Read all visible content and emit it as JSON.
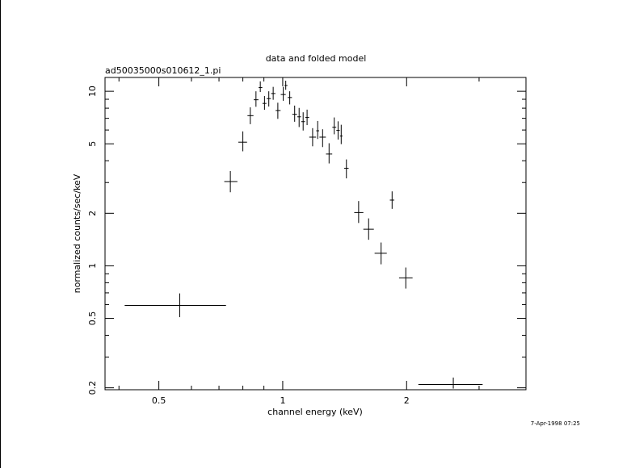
{
  "chart_data": {
    "type": "scatter",
    "title": "data and folded model",
    "subtitle": "ad50035000s010612_1.pi",
    "xlabel": "channel energy (keV)",
    "ylabel": "normalized counts/sec/keV",
    "x_scale": "log",
    "y_scale": "log",
    "xlim": [
      0.37,
      3.9
    ],
    "ylim": [
      0.195,
      12.0
    ],
    "x_ticks": [
      {
        "value": 0.5,
        "label": "0.5"
      },
      {
        "value": 1,
        "label": "1"
      },
      {
        "value": 2,
        "label": "2"
      }
    ],
    "y_ticks": [
      {
        "value": 0.2,
        "label": "0.2"
      },
      {
        "value": 0.5,
        "label": "0.5"
      },
      {
        "value": 1,
        "label": "1"
      },
      {
        "value": 2,
        "label": "2"
      },
      {
        "value": 5,
        "label": "5"
      },
      {
        "value": 10,
        "label": "10"
      }
    ],
    "series": [
      {
        "points": [
          {
            "x": 0.562,
            "xlo": 0.413,
            "xhi": 0.728,
            "y": 0.593,
            "ylo": 0.508,
            "yhi": 0.695
          },
          {
            "x": 0.746,
            "xlo": 0.721,
            "xhi": 0.776,
            "y": 3.04,
            "ylo": 2.64,
            "yhi": 3.49
          },
          {
            "x": 0.8,
            "xlo": 0.78,
            "xhi": 0.819,
            "y": 5.11,
            "ylo": 4.53,
            "yhi": 5.89
          },
          {
            "x": 0.834,
            "xlo": 0.821,
            "xhi": 0.849,
            "y": 7.25,
            "ylo": 6.48,
            "yhi": 8.09
          },
          {
            "x": 0.861,
            "xlo": 0.85,
            "xhi": 0.873,
            "y": 8.94,
            "ylo": 8.15,
            "yhi": 10.0
          },
          {
            "x": 0.882,
            "xlo": 0.874,
            "xhi": 0.892,
            "y": 10.5,
            "ylo": 9.9,
            "yhi": 11.4
          },
          {
            "x": 0.903,
            "xlo": 0.893,
            "xhi": 0.913,
            "y": 8.52,
            "ylo": 7.83,
            "yhi": 9.39
          },
          {
            "x": 0.925,
            "xlo": 0.914,
            "xhi": 0.936,
            "y": 9.08,
            "ylo": 8.18,
            "yhi": 10.0
          },
          {
            "x": 0.948,
            "xlo": 0.937,
            "xhi": 0.96,
            "y": 9.71,
            "ylo": 8.94,
            "yhi": 10.6
          },
          {
            "x": 0.973,
            "xlo": 0.961,
            "xhi": 0.988,
            "y": 7.76,
            "ylo": 6.95,
            "yhi": 8.6
          },
          {
            "x": 1.003,
            "xlo": 0.989,
            "xhi": 1.017,
            "y": 9.58,
            "ylo": 8.82,
            "yhi": 10.6
          },
          {
            "x": 1.017,
            "xlo": 1.01,
            "xhi": 1.027,
            "y": 10.8,
            "ylo": 10.2,
            "yhi": 11.5
          },
          {
            "x": 1.04,
            "xlo": 1.028,
            "xhi": 1.053,
            "y": 9.21,
            "ylo": 8.41,
            "yhi": 10.0
          },
          {
            "x": 1.069,
            "xlo": 1.055,
            "xhi": 1.083,
            "y": 7.38,
            "ylo": 6.69,
            "yhi": 8.28
          },
          {
            "x": 1.096,
            "xlo": 1.085,
            "xhi": 1.108,
            "y": 7.14,
            "ylo": 6.24,
            "yhi": 8.03
          },
          {
            "x": 1.121,
            "xlo": 1.109,
            "xhi": 1.133,
            "y": 6.7,
            "ylo": 5.96,
            "yhi": 7.58
          },
          {
            "x": 1.146,
            "xlo": 1.135,
            "xhi": 1.159,
            "y": 7.08,
            "ylo": 6.4,
            "yhi": 7.85
          },
          {
            "x": 1.182,
            "xlo": 1.16,
            "xhi": 1.205,
            "y": 5.46,
            "ylo": 4.84,
            "yhi": 6.15
          },
          {
            "x": 1.216,
            "xlo": 1.206,
            "xhi": 1.226,
            "y": 5.94,
            "ylo": 5.33,
            "yhi": 6.76
          },
          {
            "x": 1.25,
            "xlo": 1.228,
            "xhi": 1.273,
            "y": 5.46,
            "ylo": 4.79,
            "yhi": 6.06
          },
          {
            "x": 1.296,
            "xlo": 1.274,
            "xhi": 1.319,
            "y": 4.37,
            "ylo": 3.86,
            "yhi": 5.04
          },
          {
            "x": 1.334,
            "xlo": 1.32,
            "xhi": 1.349,
            "y": 6.22,
            "ylo": 5.67,
            "yhi": 7.08
          },
          {
            "x": 1.363,
            "xlo": 1.35,
            "xhi": 1.376,
            "y": 5.97,
            "ylo": 5.29,
            "yhi": 6.73
          },
          {
            "x": 1.387,
            "xlo": 1.377,
            "xhi": 1.398,
            "y": 5.54,
            "ylo": 4.98,
            "yhi": 6.43
          },
          {
            "x": 1.428,
            "xlo": 1.41,
            "xhi": 1.446,
            "y": 3.62,
            "ylo": 3.17,
            "yhi": 4.07
          },
          {
            "x": 1.529,
            "xlo": 1.492,
            "xhi": 1.57,
            "y": 2.02,
            "ylo": 1.76,
            "yhi": 2.35
          },
          {
            "x": 1.617,
            "xlo": 1.57,
            "xhi": 1.665,
            "y": 1.62,
            "ylo": 1.41,
            "yhi": 1.87
          },
          {
            "x": 1.734,
            "xlo": 1.672,
            "xhi": 1.79,
            "y": 1.18,
            "ylo": 1.02,
            "yhi": 1.36
          },
          {
            "x": 1.844,
            "xlo": 1.821,
            "xhi": 1.867,
            "y": 2.38,
            "ylo": 2.12,
            "yhi": 2.67
          },
          {
            "x": 1.991,
            "xlo": 1.917,
            "xhi": 2.068,
            "y": 0.853,
            "ylo": 0.741,
            "yhi": 0.978
          },
          {
            "x": 2.597,
            "xlo": 2.136,
            "xhi": 3.06,
            "y": 0.209,
            "ylo": 0.198,
            "yhi": 0.229
          }
        ]
      }
    ]
  },
  "footer": {
    "timestamp": "7-Apr-1998 07:25"
  }
}
